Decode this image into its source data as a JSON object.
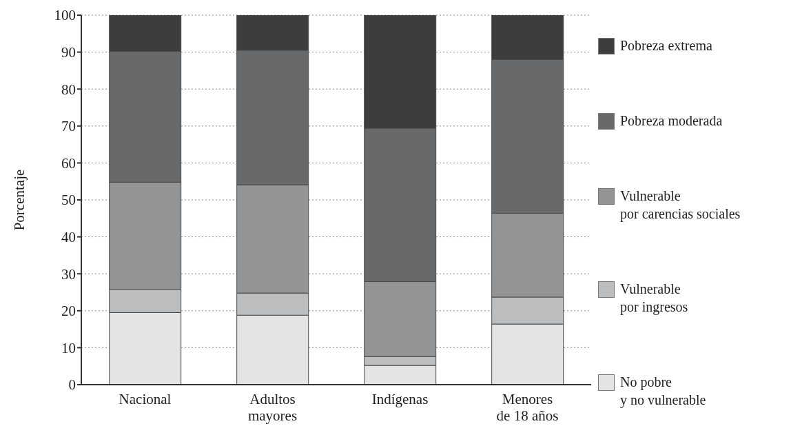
{
  "chart_data": {
    "type": "bar",
    "stacked": true,
    "ylabel": "Porcentaje",
    "categories": [
      "Nacional",
      "Adultos mayores",
      "Indígenas",
      "Menores de 18 años"
    ],
    "series": [
      {
        "name": "No pobre y no vulnerable",
        "color": "#e4e4e4",
        "values": [
          19.5,
          18.8,
          5.2,
          16.4
        ]
      },
      {
        "name": "Vulnerable por ingresos",
        "color": "#bcbdbf",
        "values": [
          6.3,
          6.0,
          2.4,
          7.3
        ]
      },
      {
        "name": "Vulnerable por carencias sociales",
        "color": "#939495",
        "values": [
          29.0,
          29.3,
          20.3,
          22.7
        ]
      },
      {
        "name": "Pobreza moderada",
        "color": "#68696b",
        "values": [
          35.4,
          36.4,
          41.5,
          41.6
        ]
      },
      {
        "name": "Pobreza extrema",
        "color": "#3d3d3d",
        "values": [
          9.8,
          9.5,
          30.6,
          12.0
        ]
      }
    ],
    "ylim": [
      0,
      100
    ],
    "yticks": [
      0,
      10,
      20,
      30,
      40,
      50,
      60,
      70,
      80,
      90,
      100
    ],
    "grid": "y",
    "legend": "right"
  }
}
